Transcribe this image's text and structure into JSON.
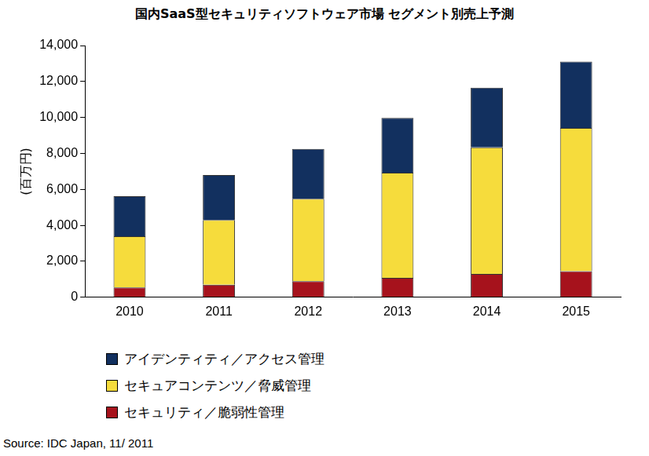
{
  "chart_data": {
    "type": "bar",
    "stacked": true,
    "title": "国内SaaS型セキュリティソフトウェア市場 セグメント別売上予測",
    "y_label": "(百万円)",
    "source": "Source: IDC Japan, 11/ 2011",
    "categories": [
      "2010",
      "2011",
      "2012",
      "2013",
      "2014",
      "2015"
    ],
    "series": [
      {
        "name": "アイデンティティ／アクセス管理",
        "color": "#12305f",
        "values": [
          2220,
          2500,
          2770,
          3040,
          3310,
          3680
        ]
      },
      {
        "name": "セキュアコンテンツ／脅威管理",
        "color": "#f6dc3c",
        "values": [
          2850,
          3600,
          4580,
          5850,
          7040,
          7970
        ]
      },
      {
        "name": "セキュリティ／脆弱性管理",
        "color": "#a6121c",
        "values": [
          550,
          700,
          900,
          1080,
          1300,
          1450
        ]
      }
    ],
    "ylim": [
      0,
      14000
    ],
    "yticks": [
      0,
      {
        "value": 2000,
        "label": "2,000"
      },
      {
        "value": 4000,
        "label": "4,000"
      },
      {
        "value": 6000,
        "label": "6,000"
      },
      {
        "value": 8000,
        "label": "8,000"
      },
      {
        "value": 10000,
        "label": "10,000"
      },
      {
        "value": 12000,
        "label": "12,000"
      },
      {
        "value": 14000,
        "label": "14,000"
      }
    ],
    "grid": false,
    "legend": "bottom"
  }
}
